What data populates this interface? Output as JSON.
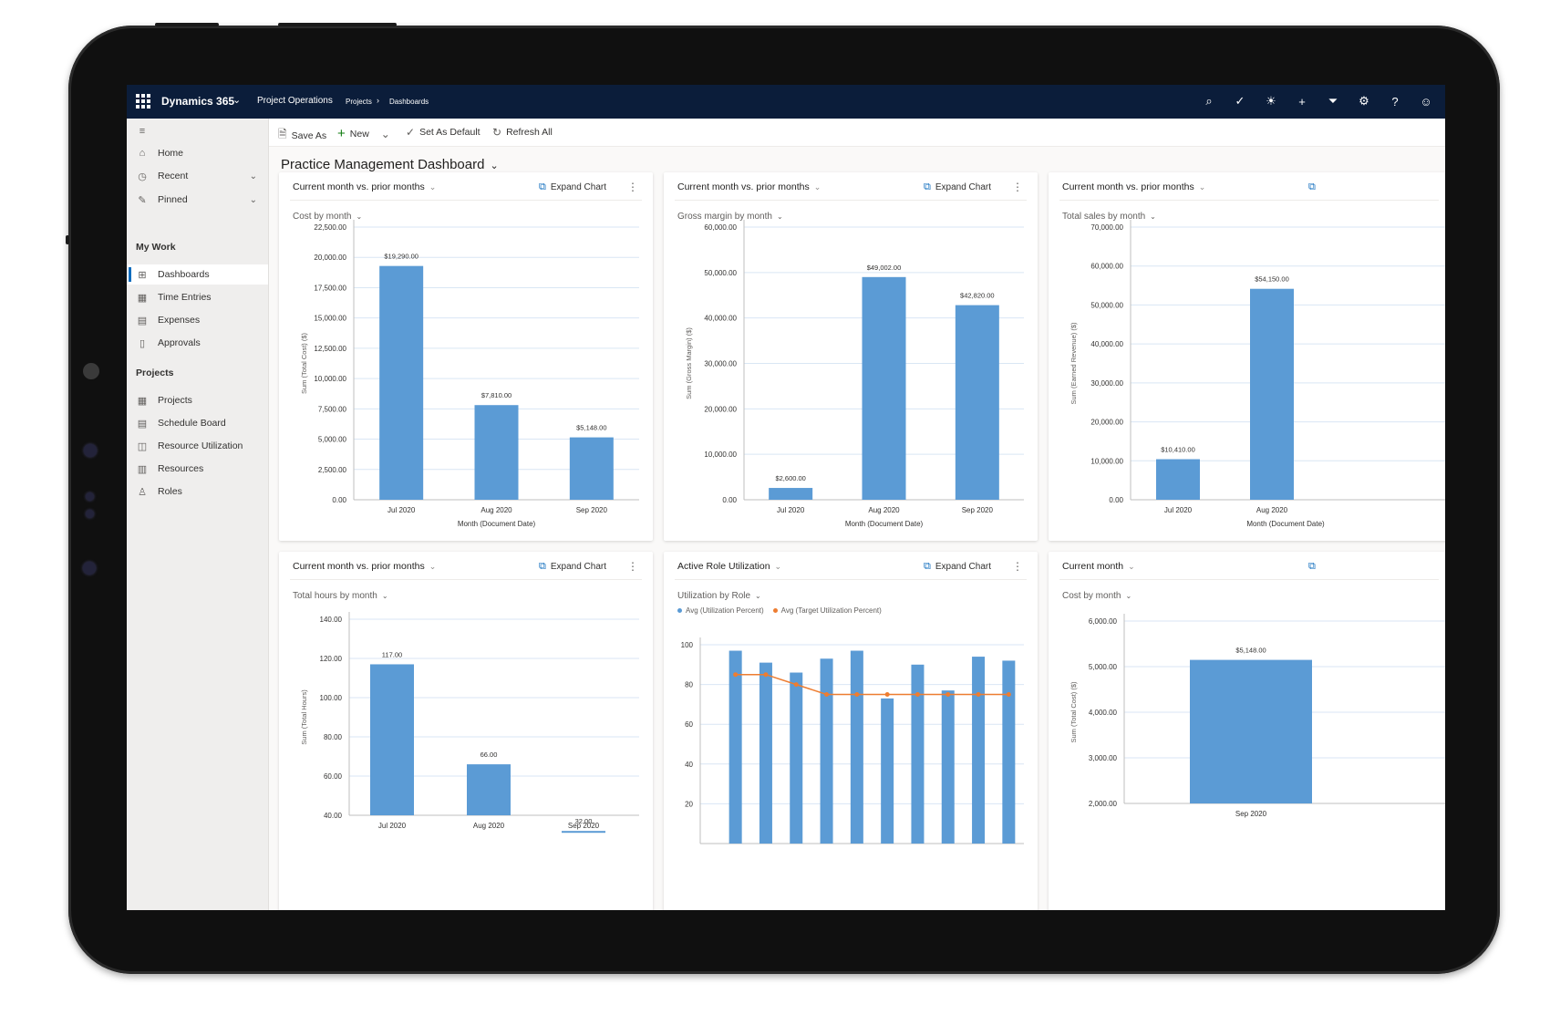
{
  "topbar": {
    "app_name": "Dynamics 365",
    "area": "Project Operations",
    "crumb1": "Projects",
    "crumb2": "Dashboards",
    "icons": [
      "search-icon",
      "task-icon",
      "lightbulb-icon",
      "plus-icon",
      "filter-icon",
      "settings-icon",
      "help-icon",
      "user-icon"
    ]
  },
  "sidebar": {
    "top": [
      {
        "label": "Home",
        "icon": "⌂"
      },
      {
        "label": "Recent",
        "icon": "◷"
      },
      {
        "label": "Pinned",
        "icon": "✎"
      }
    ],
    "my_work_header": "My Work",
    "my_work": [
      {
        "label": "Dashboards",
        "icon": "⊞"
      },
      {
        "label": "Time Entries",
        "icon": "▦"
      },
      {
        "label": "Expenses",
        "icon": "▤"
      },
      {
        "label": "Approvals",
        "icon": "▯"
      }
    ],
    "projects_header": "Projects",
    "projects": [
      {
        "label": "Projects",
        "icon": "▦"
      },
      {
        "label": "Schedule Board",
        "icon": "▤"
      },
      {
        "label": "Resource Utilization",
        "icon": "◫"
      },
      {
        "label": "Resources",
        "icon": "▥"
      },
      {
        "label": "Roles",
        "icon": "♙"
      }
    ]
  },
  "commands": {
    "save_as": "Save As",
    "new": "New",
    "set_default": "Set As Default",
    "refresh": "Refresh All"
  },
  "page_title": "Practice Management Dashboard",
  "expand_label": "Expand Chart",
  "cards": [
    {
      "title": "Current month vs. prior months",
      "subtitle": "Cost by month"
    },
    {
      "title": "Current month vs. prior months",
      "subtitle": "Gross margin by month"
    },
    {
      "title": "Current month vs. prior months",
      "subtitle": "Total sales by month"
    },
    {
      "title": "Current month vs. prior months",
      "subtitle": "Total hours by month"
    },
    {
      "title": "Active Role Utilization",
      "subtitle": "Utilization by Role"
    },
    {
      "title": "Current month",
      "subtitle": "Cost by month"
    }
  ],
  "chart_data": [
    {
      "type": "bar",
      "title": "Cost by month",
      "xlabel": "Month (Document Date)",
      "ylabel": "Sum (Total Cost) ($)",
      "categories": [
        "Jul 2020",
        "Aug 2020",
        "Sep 2020"
      ],
      "values": [
        19290,
        7810,
        5148
      ],
      "labels": [
        "$19,290.00",
        "$7,810.00",
        "$5,148.00"
      ],
      "ylim": [
        0,
        22500
      ],
      "yticks": [
        "0.00",
        "2,500.00",
        "5,000.00",
        "7,500.00",
        "10,000.00",
        "12,500.00",
        "15,000.00",
        "17,500.00",
        "20,000.00",
        "22,500.00"
      ],
      "grid": true
    },
    {
      "type": "bar",
      "title": "Gross margin by month",
      "xlabel": "Month (Document Date)",
      "ylabel": "Sum (Gross Margin) ($)",
      "categories": [
        "Jul 2020",
        "Aug 2020",
        "Sep 2020"
      ],
      "values": [
        2600,
        49002,
        42820
      ],
      "labels": [
        "$2,600.00",
        "$49,002.00",
        "$42,820.00"
      ],
      "ylim": [
        0,
        60000
      ],
      "yticks": [
        "0.00",
        "10,000.00",
        "20,000.00",
        "30,000.00",
        "40,000.00",
        "50,000.00",
        "60,000.00"
      ],
      "grid": true
    },
    {
      "type": "bar",
      "title": "Total sales by month",
      "xlabel": "Month (Document Date)",
      "ylabel": "Sum (Earned Revenue) ($)",
      "categories": [
        "Jul 2020",
        "Aug 2020"
      ],
      "values": [
        10410,
        54150
      ],
      "labels": [
        "$10,410.00",
        "$54,150.00"
      ],
      "ylim": [
        0,
        70000
      ],
      "yticks": [
        "0.00",
        "10,000.00",
        "20,000.00",
        "30,000.00",
        "40,000.00",
        "50,000.00",
        "60,000.00",
        "70,000.00"
      ],
      "grid": true
    },
    {
      "type": "bar",
      "title": "Total hours by month",
      "ylabel": "Sum (Total Hours)",
      "categories": [
        "Jul 2020",
        "Aug 2020",
        "Sep 2020"
      ],
      "values": [
        117,
        66,
        32
      ],
      "labels": [
        "117.00",
        "66.00",
        "32.00"
      ],
      "ylim": [
        40,
        140
      ],
      "yticks": [
        "40.00",
        "60.00",
        "80.00",
        "100.00",
        "120.00",
        "140.00"
      ],
      "grid": true
    },
    {
      "type": "bar",
      "title": "Utilization by Role",
      "series": [
        {
          "name": "Avg (Utilization Percent)",
          "color": "#5b9bd5",
          "kind": "bar",
          "values": [
            97,
            91,
            86,
            93,
            97,
            73,
            90,
            77,
            94,
            92
          ]
        },
        {
          "name": "Avg (Target Utilization Percent)",
          "color": "#ed7d31",
          "kind": "line",
          "values": [
            85,
            85,
            80,
            75,
            75,
            75,
            75,
            75,
            75,
            75
          ]
        }
      ],
      "ylim": [
        0,
        100
      ],
      "yticks": [
        "20",
        "40",
        "60",
        "80",
        "100"
      ],
      "grid": true
    },
    {
      "type": "bar",
      "title": "Cost by month",
      "ylabel": "Sum (Total Cost) ($)",
      "categories": [
        "Sep 2020"
      ],
      "values": [
        5148
      ],
      "labels": [
        "$5,148.00"
      ],
      "ylim": [
        2000,
        6000
      ],
      "yticks": [
        "2,000.00",
        "3,000.00",
        "4,000.00",
        "5,000.00",
        "6,000.00"
      ],
      "grid": true
    }
  ]
}
